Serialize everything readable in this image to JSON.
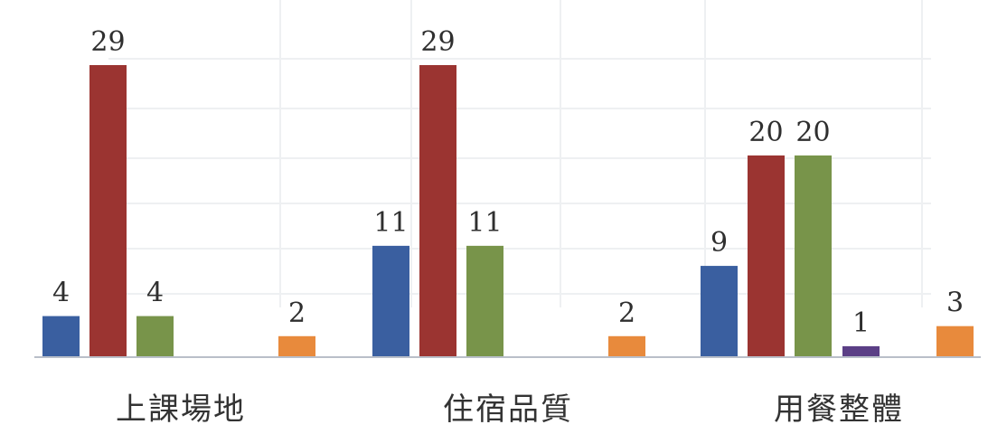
{
  "chart_data": {
    "type": "bar",
    "categories": [
      "上課場地",
      "住宿品質",
      "用餐整體"
    ],
    "series": [
      {
        "color": "#3a5fa0",
        "values": [
          4,
          11,
          9
        ]
      },
      {
        "color": "#9b3431",
        "values": [
          29,
          29,
          20
        ]
      },
      {
        "color": "#78944a",
        "values": [
          4,
          11,
          20
        ]
      },
      {
        "color": "#5b3f86",
        "values": [
          null,
          null,
          1
        ]
      },
      {
        "color": "#e88a3c",
        "values": [
          2,
          2,
          3
        ]
      }
    ],
    "ylim": [
      0,
      29
    ],
    "grid": false,
    "legend": "none"
  }
}
